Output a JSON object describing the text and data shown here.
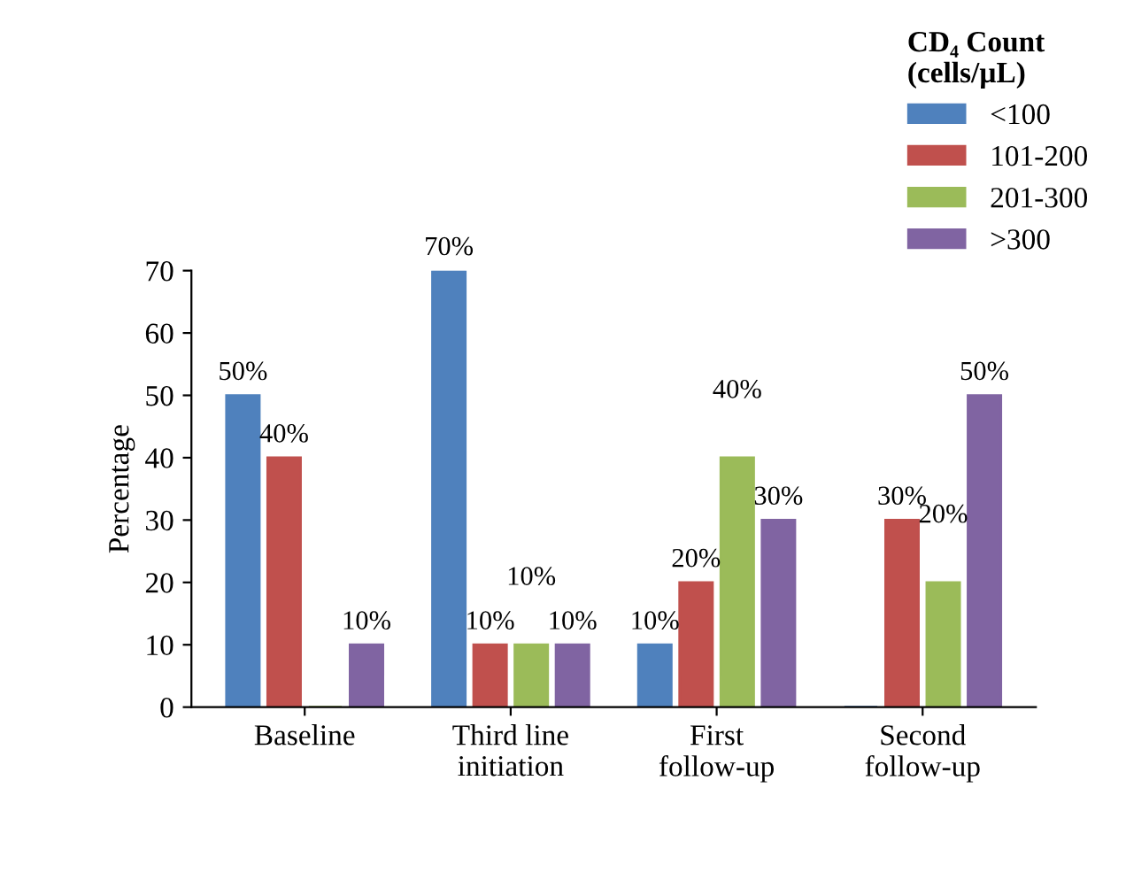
{
  "chart_data": {
    "type": "bar",
    "ylabel": "Percentage",
    "legend_title": "CD₄ Count\n(cells/µL)",
    "categories": [
      "Baseline",
      "Third line\ninitiation",
      "First\nfollow-up",
      "Second\nfollow-up"
    ],
    "series": [
      {
        "name": "<100",
        "color": "#4f81bd",
        "values": [
          50,
          70,
          10,
          0
        ],
        "value_labels": [
          "50%",
          "70%",
          "10%",
          null
        ]
      },
      {
        "name": "101-200",
        "color": "#c0504d",
        "values": [
          40,
          10,
          20,
          30
        ],
        "value_labels": [
          "40%",
          "10%",
          "20%",
          "30%"
        ]
      },
      {
        "name": "201-300",
        "color": "#9bbb59",
        "values": [
          0,
          10,
          40,
          20
        ],
        "value_labels": [
          null,
          "10%",
          "40%",
          "20%"
        ]
      },
      {
        "name": ">300",
        "color": "#8064a2",
        "values": [
          10,
          10,
          30,
          50
        ],
        "value_labels": [
          "10%",
          "10%",
          "30%",
          "50%"
        ]
      }
    ],
    "ylim": [
      0,
      70
    ],
    "yticks": [
      0,
      10,
      20,
      30,
      40,
      50,
      60,
      70
    ],
    "grid": false,
    "legend": "top right"
  }
}
